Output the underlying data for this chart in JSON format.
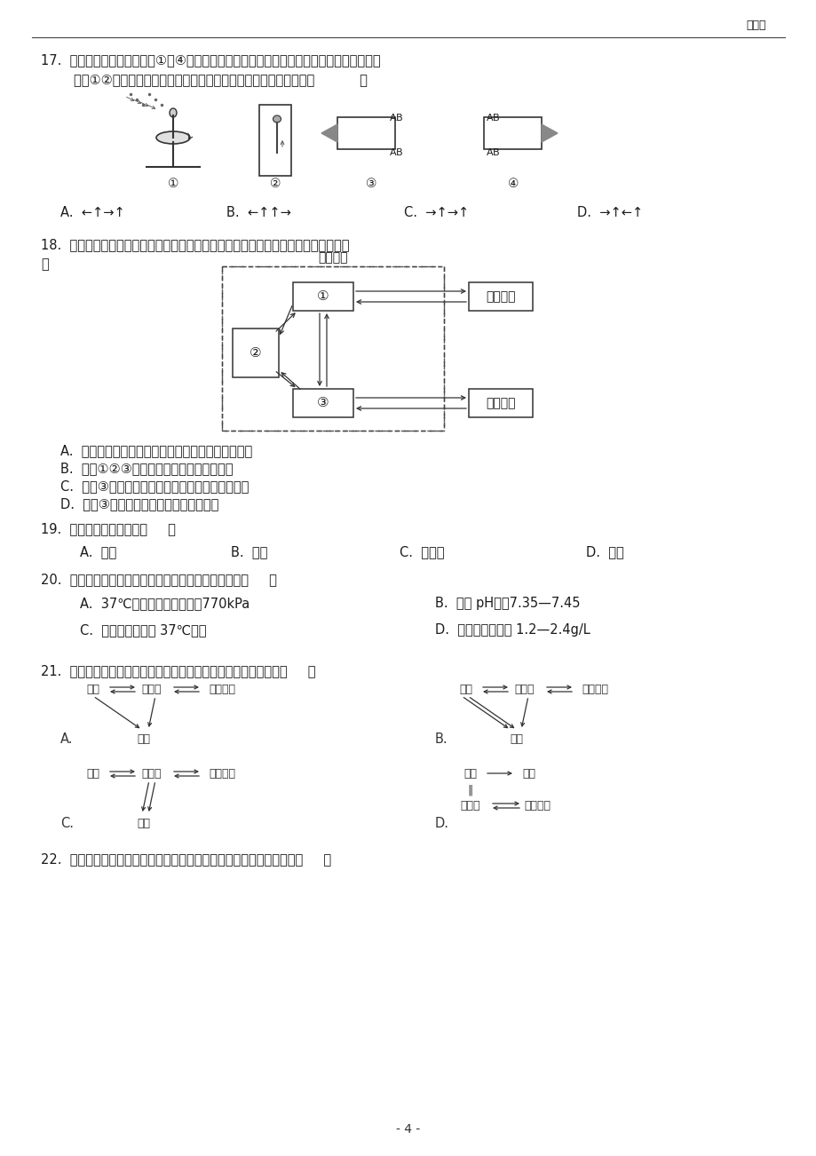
{
  "page_number": "- 4 -",
  "top_right_text": "可修改",
  "background_color": "#ffffff",
  "text_color": "#1a1a1a",
  "q17_line1": "17.  对胚芽鞘进行如图所示的①～④实验，其中旋转均为匀速旋转，一段时间后停止旋转时，",
  "q17_line2": "        实验①②装置仍停止在如图位置，则四个胚芽鞘的生长方向依次是（           ）",
  "q17_opts": [
    "A.  ←↑→↑",
    "B.  ←↑↑→",
    "C.  →↑→↑",
    "D.  →↑←↑"
  ],
  "q18_line1": "18.  如图是人体内的细胞与外界环境进行物质交换的示意图，下列有关叙述正确的是（",
  "q18_line2": "）",
  "q18_opts": [
    "A.  维生素、糖原和尿素都是细胞外液重要的组成成分",
    "B.  图中①②③分别代表血液、淋巴和组织液",
    "C.  图中③和细胞内液之间通过细胞膜进行物质交换",
    "D.  图中③渗回血浆的量小于渗入淋巴的量"
  ],
  "q19_text": "19.  下列不是内环境的是（     ）",
  "q19_opts": [
    "A.  血浆",
    "B.  血液",
    "C.  组织液",
    "D.  淋巴"
  ],
  "q20_text": "20.  关于人体内环境正常的理化参数，不正确的说法是（     ）",
  "q20_opts": [
    [
      "A.  37℃时，血浆渗透压约为770kPa",
      "B.  血浆 pH约为7.35—7.45"
    ],
    [
      "C.  温度一般维持在 37℃左右",
      "D.  血糖含量稳定在 1.2—2.4g/L"
    ]
  ],
  "q21_text": "21.  以下表示人体细胞与内环境之间的物质交换的关系，正确的是（     ）",
  "q22_text": "22.  下图甲、乙是膜电位的测量示意图，下列说法中描述的是图乙的是（     ）"
}
